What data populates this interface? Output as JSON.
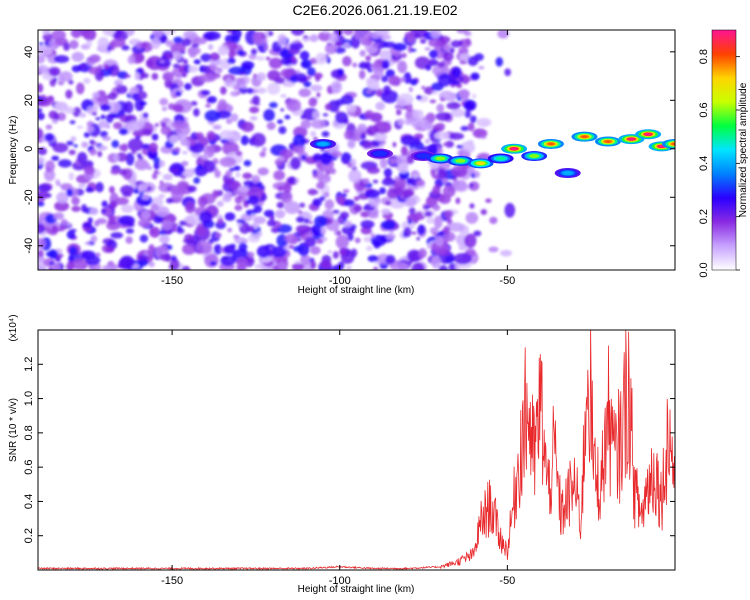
{
  "page": {
    "title": "C2E6.2026.061.21.19.E02"
  },
  "chart_data": [
    {
      "type": "heatmap",
      "title": "",
      "xlabel": "Height of straight line (km)",
      "ylabel": "Frequency (Hz)",
      "xlim": [
        -190,
        0
      ],
      "ylim": [
        -50,
        49
      ],
      "x_ticks": [
        -150,
        -100,
        -50
      ],
      "y_ticks": [
        -40,
        -20,
        0,
        20,
        40
      ],
      "colorbar": {
        "label": "Normalized spectral amplitude",
        "range": [
          0.0,
          0.9
        ],
        "ticks": [
          0.0,
          0.2,
          0.4,
          0.6,
          0.8
        ],
        "colors": [
          "#ffffff",
          "#c7a3ff",
          "#8a2be2",
          "#2b00ff",
          "#0080ff",
          "#00e5ff",
          "#00ff40",
          "#c8ff00",
          "#ffd400",
          "#ff4000",
          "#ff1493"
        ]
      },
      "noise_region_x": [
        -190,
        -60
      ],
      "noise_level": 0.2,
      "signal_track": [
        {
          "x": -105,
          "y": 2,
          "amp": 0.4
        },
        {
          "x": -88,
          "y": -2,
          "amp": 0.3
        },
        {
          "x": -75,
          "y": -3,
          "amp": 0.3
        },
        {
          "x": -70,
          "y": -4,
          "amp": 0.6
        },
        {
          "x": -64,
          "y": -5,
          "amp": 0.6
        },
        {
          "x": -58,
          "y": -6,
          "amp": 0.7
        },
        {
          "x": -52,
          "y": -4,
          "amp": 0.5
        },
        {
          "x": -48,
          "y": 0,
          "amp": 0.9
        },
        {
          "x": -42,
          "y": -3,
          "amp": 0.6
        },
        {
          "x": -37,
          "y": 2,
          "amp": 0.8
        },
        {
          "x": -32,
          "y": -10,
          "amp": 0.4
        },
        {
          "x": -27,
          "y": 5,
          "amp": 0.8
        },
        {
          "x": -20,
          "y": 3,
          "amp": 0.8
        },
        {
          "x": -13,
          "y": 4,
          "amp": 0.9
        },
        {
          "x": -8,
          "y": 6,
          "amp": 0.9
        },
        {
          "x": -4,
          "y": 1,
          "amp": 0.9
        },
        {
          "x": 0,
          "y": 2,
          "amp": 0.8
        }
      ]
    },
    {
      "type": "line",
      "title": "",
      "xlabel": "Height of straight line (km)",
      "ylabel": "SNR (10 * v/v)",
      "y_multiplier": "(x10⁴)",
      "xlim": [
        -190,
        0
      ],
      "ylim": [
        0,
        1.4
      ],
      "x_ticks": [
        -150,
        -100,
        -50
      ],
      "y_ticks": [
        0.2,
        0.4,
        0.6,
        0.8,
        1.0,
        1.2
      ],
      "series": [
        {
          "color": "#e8282b",
          "x": [
            -190,
            -170,
            -150,
            -130,
            -110,
            -100,
            -90,
            -80,
            -70,
            -65,
            -60,
            -58,
            -55,
            -52,
            -50,
            -48,
            -46,
            -44,
            -42,
            -40,
            -38,
            -36,
            -34,
            -32,
            -30,
            -28,
            -26,
            -24,
            -22,
            -20,
            -18,
            -16,
            -14,
            -12,
            -10,
            -8,
            -6,
            -4,
            -2,
            0
          ],
          "values": [
            0.01,
            0.01,
            0.01,
            0.01,
            0.01,
            0.02,
            0.01,
            0.01,
            0.02,
            0.05,
            0.1,
            0.3,
            0.42,
            0.2,
            0.12,
            0.45,
            0.8,
            1.05,
            0.7,
            1.07,
            0.5,
            0.75,
            0.35,
            0.45,
            0.55,
            0.3,
            1.4,
            0.6,
            0.55,
            1.0,
            0.7,
            0.85,
            1.2,
            0.5,
            0.35,
            0.55,
            0.65,
            0.45,
            0.9,
            0.6
          ]
        }
      ]
    }
  ]
}
